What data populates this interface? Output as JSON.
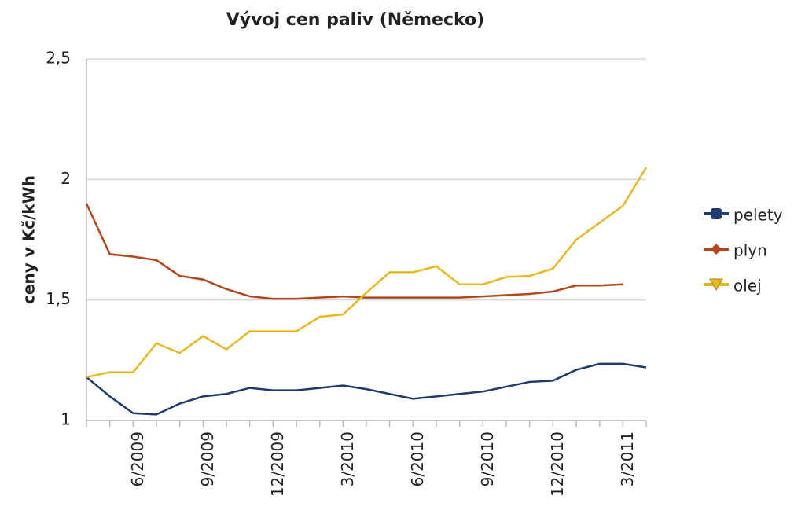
{
  "chart_data": {
    "type": "line",
    "title": "Vývoj cen paliv (Německo)",
    "y_label": "ceny v Kč/kWh",
    "categories": [
      null,
      null,
      "6/2009",
      null,
      null,
      "9/2009",
      null,
      null,
      "12/2009",
      null,
      null,
      "3/2010",
      null,
      null,
      "6/2010",
      null,
      null,
      "9/2010",
      null,
      null,
      "12/2010",
      null,
      null,
      "3/2011",
      null
    ],
    "series": [
      {
        "name": "pelety",
        "color": "#1f3a6e",
        "marker": "square",
        "values": [
          1.18,
          1.1,
          1.03,
          1.025,
          1.07,
          1.1,
          1.11,
          1.135,
          1.125,
          1.125,
          1.135,
          1.145,
          1.13,
          1.11,
          1.09,
          1.1,
          1.11,
          1.12,
          1.14,
          1.16,
          1.165,
          1.21,
          1.235,
          1.235,
          1.22
        ]
      },
      {
        "name": "plyn",
        "color": "#b5451b",
        "marker": "diamond",
        "values": [
          1.9,
          1.69,
          1.68,
          1.665,
          1.6,
          1.585,
          1.545,
          1.515,
          1.505,
          1.505,
          1.51,
          1.515,
          1.51,
          1.51,
          1.51,
          1.51,
          1.51,
          1.515,
          1.52,
          1.525,
          1.535,
          1.56,
          1.56,
          1.565,
          null
        ]
      },
      {
        "name": "olej",
        "color": "#e8b820",
        "marker": "triangle",
        "values": [
          1.18,
          1.2,
          1.2,
          1.32,
          1.28,
          1.35,
          1.295,
          1.37,
          1.37,
          1.37,
          1.43,
          1.44,
          1.53,
          1.615,
          1.615,
          1.64,
          1.565,
          1.565,
          1.595,
          1.6,
          1.63,
          1.75,
          1.82,
          1.89,
          2.05
        ]
      }
    ],
    "ylim": [
      1,
      2.5
    ],
    "yticks": [
      1,
      {
        "value": 1.5,
        "label": "1,5"
      },
      2,
      {
        "value": 2.5,
        "label": "2,5"
      }
    ],
    "grid": true,
    "legend": "right"
  }
}
